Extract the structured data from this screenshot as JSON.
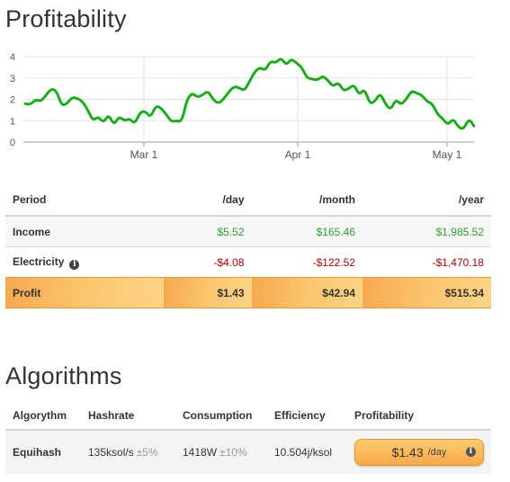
{
  "profitability_section": {
    "title": "Profitability"
  },
  "chart_data": {
    "type": "line",
    "title": "",
    "xlabel": "",
    "ylabel": "",
    "ylim": [
      0,
      4
    ],
    "y_ticks": [
      "0",
      "1",
      "2",
      "3",
      "4"
    ],
    "x_ticks": [
      "Mar 1",
      "Apr 1",
      "May 1"
    ],
    "grid": true,
    "line_color": "#1aac1a",
    "series": [
      {
        "values": [
          1.8,
          1.75,
          2.0,
          1.9,
          2.2,
          2.5,
          2.4,
          1.7,
          1.8,
          2.1,
          2.05,
          1.9,
          1.5,
          1.0,
          1.2,
          0.9,
          1.3,
          0.8,
          1.2,
          1.0,
          1.1,
          0.85,
          1.4,
          1.45,
          1.15,
          1.7,
          1.6,
          1.3,
          0.95,
          1.0,
          0.95,
          2.0,
          2.3,
          2.1,
          2.2,
          2.4,
          2.0,
          1.8,
          2.0,
          2.35,
          2.6,
          2.55,
          2.4,
          2.85,
          3.3,
          3.5,
          3.35,
          3.8,
          3.7,
          3.95,
          3.6,
          3.9,
          3.7,
          3.5,
          3.0,
          2.95,
          2.9,
          3.1,
          2.9,
          2.6,
          2.8,
          2.4,
          2.5,
          2.7,
          2.2,
          2.5,
          1.8,
          1.9,
          2.3,
          1.8,
          1.5,
          2.0,
          1.75,
          2.0,
          2.4,
          2.3,
          2.2,
          1.9,
          1.8,
          1.3,
          1.1,
          0.8,
          1.1,
          0.7,
          0.6,
          1.1,
          0.75
        ]
      }
    ]
  },
  "profit_table": {
    "headers": {
      "period": "Period",
      "day": "/day",
      "month": "/month",
      "year": "/year"
    },
    "rows": {
      "income": {
        "label": "Income",
        "day": "$5.52",
        "month": "$165.46",
        "year": "$1,985.52"
      },
      "electricity": {
        "label": "Electricity",
        "day": "-$4.08",
        "month": "-$122.52",
        "year": "-$1,470.18"
      },
      "profit": {
        "label": "Profit",
        "day": "$1.43",
        "month": "$42.94",
        "year": "$515.34"
      }
    },
    "info_icon": "info-icon",
    "colors": {
      "positive": "#2ea02e",
      "negative": "#b00000",
      "profit_row": "#f9b45c"
    }
  },
  "algorithms_section": {
    "title": "Algorithms"
  },
  "algo_table": {
    "headers": {
      "algorithm": "Algorythm",
      "hashrate": "Hashrate",
      "consumption": "Consumption",
      "efficiency": "Efficiency",
      "profitability": "Profitability"
    },
    "rows": [
      {
        "algorithm": "Equihash",
        "hashrate": "135ksol/s",
        "hashrate_tol": "±5%",
        "consumption": "1418W",
        "consumption_tol": "±10%",
        "efficiency": "10.504j/ksol",
        "profit_value": "$1.43",
        "profit_unit": "/day"
      }
    ]
  }
}
